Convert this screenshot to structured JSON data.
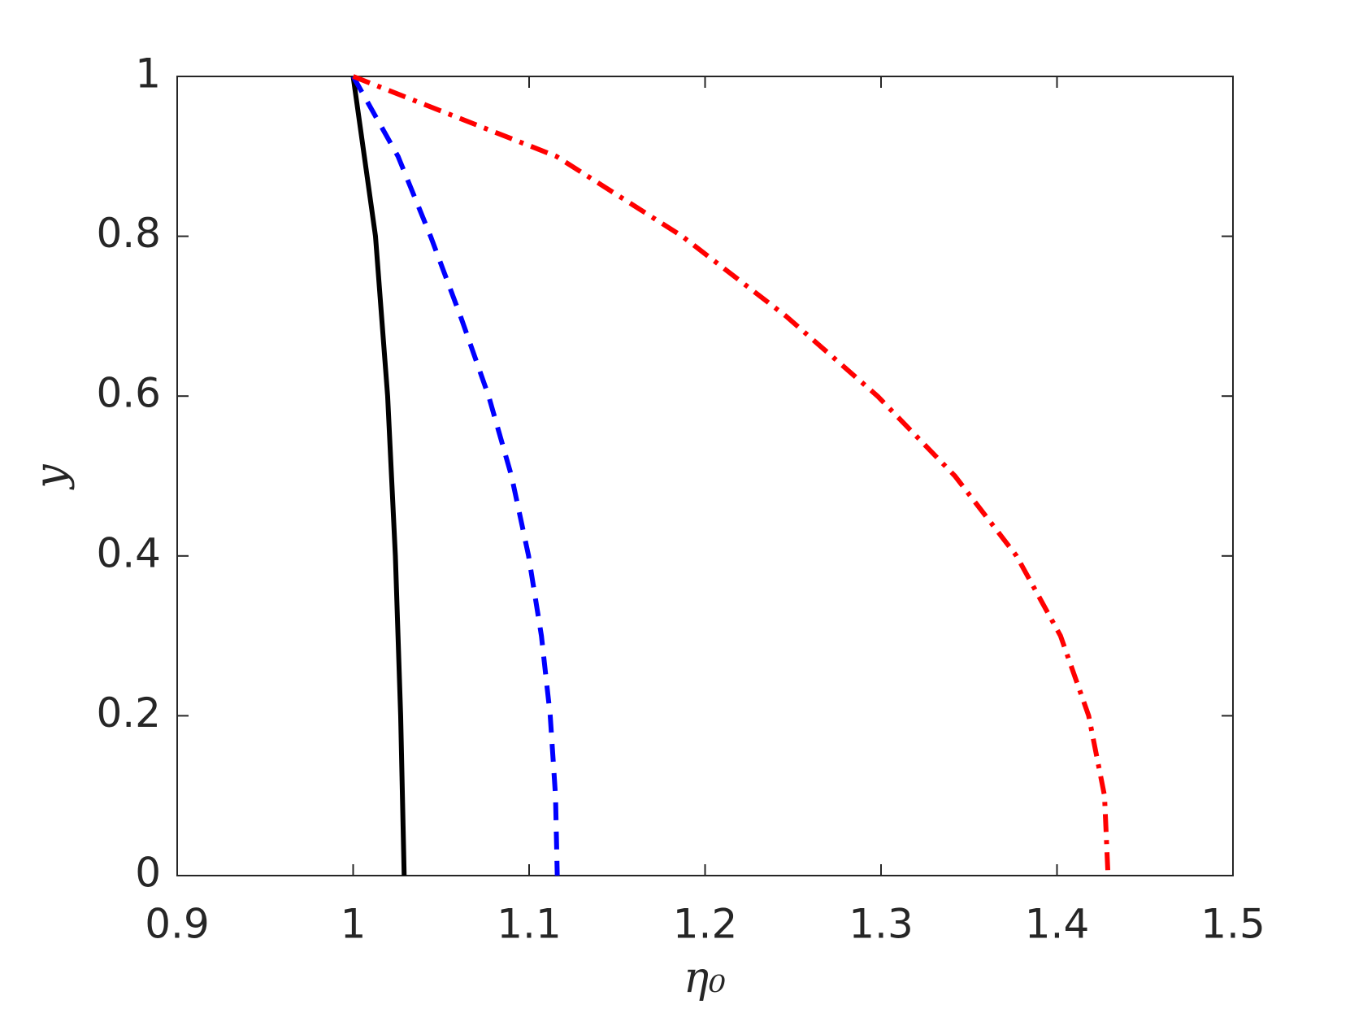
{
  "chart_data": {
    "type": "line",
    "xlabel": "η₀",
    "ylabel": "y",
    "xlim": [
      0.9,
      1.5
    ],
    "ylim": [
      0,
      1
    ],
    "xticks": [
      0.9,
      1,
      1.1,
      1.2,
      1.3,
      1.4,
      1.5
    ],
    "yticks": [
      0,
      0.2,
      0.4,
      0.6,
      0.8,
      1
    ],
    "grid": false,
    "series": [
      {
        "color": "#000000",
        "style": "solid",
        "x": [
          1.0,
          1.0127,
          1.0196,
          1.024,
          1.027,
          1.029
        ],
        "values": [
          1,
          0.8,
          0.6,
          0.4,
          0.2,
          0
        ]
      },
      {
        "color": "#0000ff",
        "style": "dashed",
        "x": [
          1.0,
          1.0255,
          1.044,
          1.061,
          1.077,
          1.09,
          1.0997,
          1.107,
          1.112,
          1.115,
          1.116
        ],
        "values": [
          1,
          0.9,
          0.8,
          0.7,
          0.6,
          0.5,
          0.4,
          0.3,
          0.2,
          0.1,
          0
        ]
      },
      {
        "color": "#ff0000",
        "style": "dashdot",
        "x": [
          1.0,
          1.1155,
          1.187,
          1.246,
          1.298,
          1.342,
          1.377,
          1.402,
          1.418,
          1.427,
          1.429
        ],
        "values": [
          1,
          0.9,
          0.8,
          0.7,
          0.6,
          0.5,
          0.4,
          0.3,
          0.2,
          0.1,
          0
        ]
      }
    ]
  }
}
